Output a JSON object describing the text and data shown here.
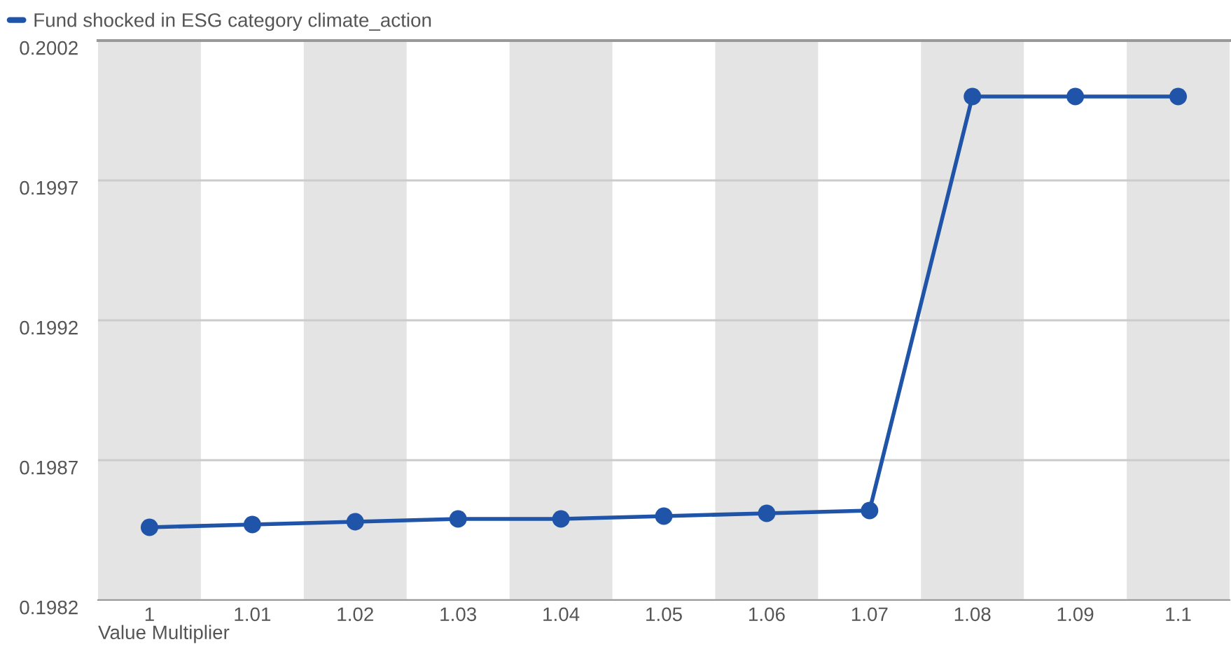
{
  "chart_data": {
    "type": "line",
    "xlabel": "Value Multiplier",
    "categories": [
      "1",
      "1.01",
      "1.02",
      "1.03",
      "1.04",
      "1.05",
      "1.06",
      "1.07",
      "1.08",
      "1.09",
      "1.1"
    ],
    "series": [
      {
        "name": "Fund shocked in ESG category climate_action",
        "color": "#1f54a8",
        "values": [
          0.19846,
          0.19847,
          0.19848,
          0.19849,
          0.19849,
          0.1985,
          0.19851,
          0.19852,
          0.2,
          0.2,
          0.2
        ]
      }
    ],
    "ylim": [
      0.1982,
      0.2002
    ],
    "yticks": [
      0.1982,
      0.1987,
      0.1992,
      0.1997,
      0.2002
    ],
    "grid": "y",
    "legend": "top left",
    "marker": "circle",
    "line_style": "solid"
  }
}
